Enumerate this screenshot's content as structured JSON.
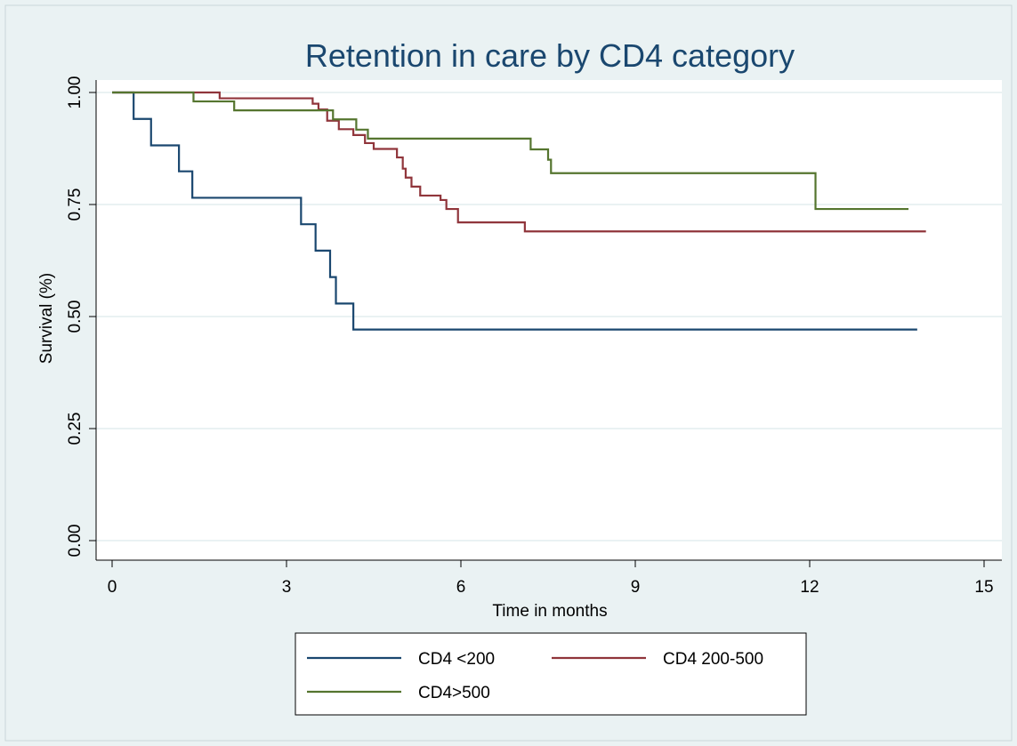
{
  "chart_data": {
    "type": "line",
    "title": "Retention in care by CD4 category",
    "xlabel": "Time in months",
    "ylabel": "Survival (%)",
    "xlim": [
      0,
      15
    ],
    "ylim": [
      0,
      1
    ],
    "xticks": [
      0,
      3,
      6,
      9,
      12,
      15
    ],
    "yticks": [
      0,
      0.25,
      0.5,
      0.75,
      1
    ],
    "xtick_labels": [
      "0",
      "3",
      "6",
      "9",
      "12",
      "15"
    ],
    "ytick_labels": [
      "0.00",
      "0.25",
      "0.50",
      "0.75",
      "1.00"
    ],
    "grid": true,
    "step": true,
    "legend_position": "bottom",
    "series": [
      {
        "name": "CD4 <200",
        "color": "#1a476f",
        "points": [
          [
            0,
            1.0
          ],
          [
            0.37,
            0.941
          ],
          [
            0.67,
            0.882
          ],
          [
            1.15,
            0.824
          ],
          [
            1.38,
            0.765
          ],
          [
            3.25,
            0.706
          ],
          [
            3.5,
            0.647
          ],
          [
            3.75,
            0.588
          ],
          [
            3.85,
            0.529
          ],
          [
            4.15,
            0.471
          ],
          [
            13.85,
            0.471
          ]
        ]
      },
      {
        "name": "CD4 200-500",
        "color": "#90353b",
        "points": [
          [
            0,
            1.0
          ],
          [
            1.85,
            0.987
          ],
          [
            3.45,
            0.975
          ],
          [
            3.55,
            0.962
          ],
          [
            3.7,
            0.937
          ],
          [
            3.9,
            0.918
          ],
          [
            4.15,
            0.905
          ],
          [
            4.35,
            0.887
          ],
          [
            4.5,
            0.874
          ],
          [
            4.9,
            0.855
          ],
          [
            5.0,
            0.83
          ],
          [
            5.05,
            0.81
          ],
          [
            5.15,
            0.79
          ],
          [
            5.3,
            0.77
          ],
          [
            5.65,
            0.76
          ],
          [
            5.75,
            0.74
          ],
          [
            5.95,
            0.71
          ],
          [
            7.1,
            0.69
          ],
          [
            14.0,
            0.69
          ]
        ]
      },
      {
        "name": "CD4>500",
        "color": "#55752f",
        "points": [
          [
            0,
            1.0
          ],
          [
            1.4,
            0.98
          ],
          [
            2.1,
            0.96
          ],
          [
            3.8,
            0.94
          ],
          [
            4.2,
            0.917
          ],
          [
            4.4,
            0.897
          ],
          [
            7.2,
            0.873
          ],
          [
            7.5,
            0.85
          ],
          [
            7.55,
            0.82
          ],
          [
            12.1,
            0.74
          ],
          [
            13.7,
            0.74
          ]
        ]
      }
    ]
  }
}
